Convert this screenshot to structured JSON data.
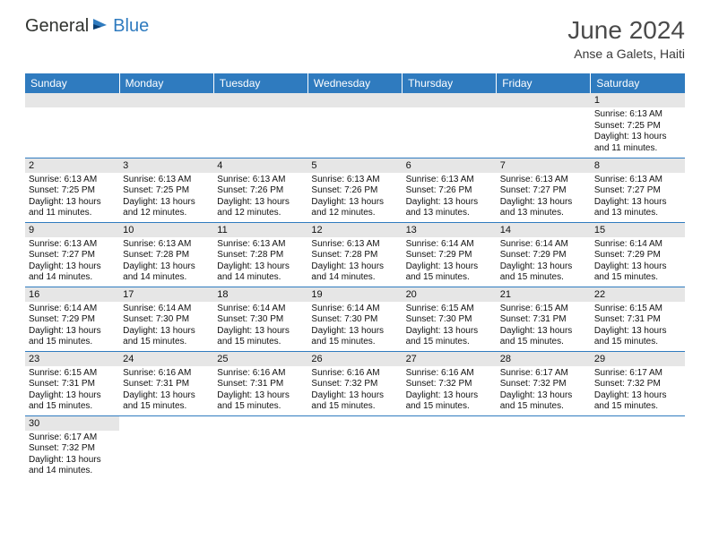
{
  "brand": {
    "general": "General",
    "blue": "Blue"
  },
  "title": "June 2024",
  "location": "Anse a Galets, Haiti",
  "colors": {
    "header_bg": "#2f7bbf",
    "header_text": "#ffffff",
    "daynum_bg": "#e6e6e6",
    "cell_border": "#2f7bbf",
    "body_text": "#111111",
    "title_text": "#4a4a4a"
  },
  "weekdays": [
    "Sunday",
    "Monday",
    "Tuesday",
    "Wednesday",
    "Thursday",
    "Friday",
    "Saturday"
  ],
  "weeks": [
    [
      null,
      null,
      null,
      null,
      null,
      null,
      {
        "n": "1",
        "sr": "6:13 AM",
        "ss": "7:25 PM",
        "dl": "13 hours and 11 minutes."
      }
    ],
    [
      {
        "n": "2",
        "sr": "6:13 AM",
        "ss": "7:25 PM",
        "dl": "13 hours and 11 minutes."
      },
      {
        "n": "3",
        "sr": "6:13 AM",
        "ss": "7:25 PM",
        "dl": "13 hours and 12 minutes."
      },
      {
        "n": "4",
        "sr": "6:13 AM",
        "ss": "7:26 PM",
        "dl": "13 hours and 12 minutes."
      },
      {
        "n": "5",
        "sr": "6:13 AM",
        "ss": "7:26 PM",
        "dl": "13 hours and 12 minutes."
      },
      {
        "n": "6",
        "sr": "6:13 AM",
        "ss": "7:26 PM",
        "dl": "13 hours and 13 minutes."
      },
      {
        "n": "7",
        "sr": "6:13 AM",
        "ss": "7:27 PM",
        "dl": "13 hours and 13 minutes."
      },
      {
        "n": "8",
        "sr": "6:13 AM",
        "ss": "7:27 PM",
        "dl": "13 hours and 13 minutes."
      }
    ],
    [
      {
        "n": "9",
        "sr": "6:13 AM",
        "ss": "7:27 PM",
        "dl": "13 hours and 14 minutes."
      },
      {
        "n": "10",
        "sr": "6:13 AM",
        "ss": "7:28 PM",
        "dl": "13 hours and 14 minutes."
      },
      {
        "n": "11",
        "sr": "6:13 AM",
        "ss": "7:28 PM",
        "dl": "13 hours and 14 minutes."
      },
      {
        "n": "12",
        "sr": "6:13 AM",
        "ss": "7:28 PM",
        "dl": "13 hours and 14 minutes."
      },
      {
        "n": "13",
        "sr": "6:14 AM",
        "ss": "7:29 PM",
        "dl": "13 hours and 15 minutes."
      },
      {
        "n": "14",
        "sr": "6:14 AM",
        "ss": "7:29 PM",
        "dl": "13 hours and 15 minutes."
      },
      {
        "n": "15",
        "sr": "6:14 AM",
        "ss": "7:29 PM",
        "dl": "13 hours and 15 minutes."
      }
    ],
    [
      {
        "n": "16",
        "sr": "6:14 AM",
        "ss": "7:29 PM",
        "dl": "13 hours and 15 minutes."
      },
      {
        "n": "17",
        "sr": "6:14 AM",
        "ss": "7:30 PM",
        "dl": "13 hours and 15 minutes."
      },
      {
        "n": "18",
        "sr": "6:14 AM",
        "ss": "7:30 PM",
        "dl": "13 hours and 15 minutes."
      },
      {
        "n": "19",
        "sr": "6:14 AM",
        "ss": "7:30 PM",
        "dl": "13 hours and 15 minutes."
      },
      {
        "n": "20",
        "sr": "6:15 AM",
        "ss": "7:30 PM",
        "dl": "13 hours and 15 minutes."
      },
      {
        "n": "21",
        "sr": "6:15 AM",
        "ss": "7:31 PM",
        "dl": "13 hours and 15 minutes."
      },
      {
        "n": "22",
        "sr": "6:15 AM",
        "ss": "7:31 PM",
        "dl": "13 hours and 15 minutes."
      }
    ],
    [
      {
        "n": "23",
        "sr": "6:15 AM",
        "ss": "7:31 PM",
        "dl": "13 hours and 15 minutes."
      },
      {
        "n": "24",
        "sr": "6:16 AM",
        "ss": "7:31 PM",
        "dl": "13 hours and 15 minutes."
      },
      {
        "n": "25",
        "sr": "6:16 AM",
        "ss": "7:31 PM",
        "dl": "13 hours and 15 minutes."
      },
      {
        "n": "26",
        "sr": "6:16 AM",
        "ss": "7:32 PM",
        "dl": "13 hours and 15 minutes."
      },
      {
        "n": "27",
        "sr": "6:16 AM",
        "ss": "7:32 PM",
        "dl": "13 hours and 15 minutes."
      },
      {
        "n": "28",
        "sr": "6:17 AM",
        "ss": "7:32 PM",
        "dl": "13 hours and 15 minutes."
      },
      {
        "n": "29",
        "sr": "6:17 AM",
        "ss": "7:32 PM",
        "dl": "13 hours and 15 minutes."
      }
    ],
    [
      {
        "n": "30",
        "sr": "6:17 AM",
        "ss": "7:32 PM",
        "dl": "13 hours and 14 minutes."
      },
      null,
      null,
      null,
      null,
      null,
      null
    ]
  ],
  "labels": {
    "sunrise": "Sunrise:",
    "sunset": "Sunset:",
    "daylight": "Daylight:"
  }
}
